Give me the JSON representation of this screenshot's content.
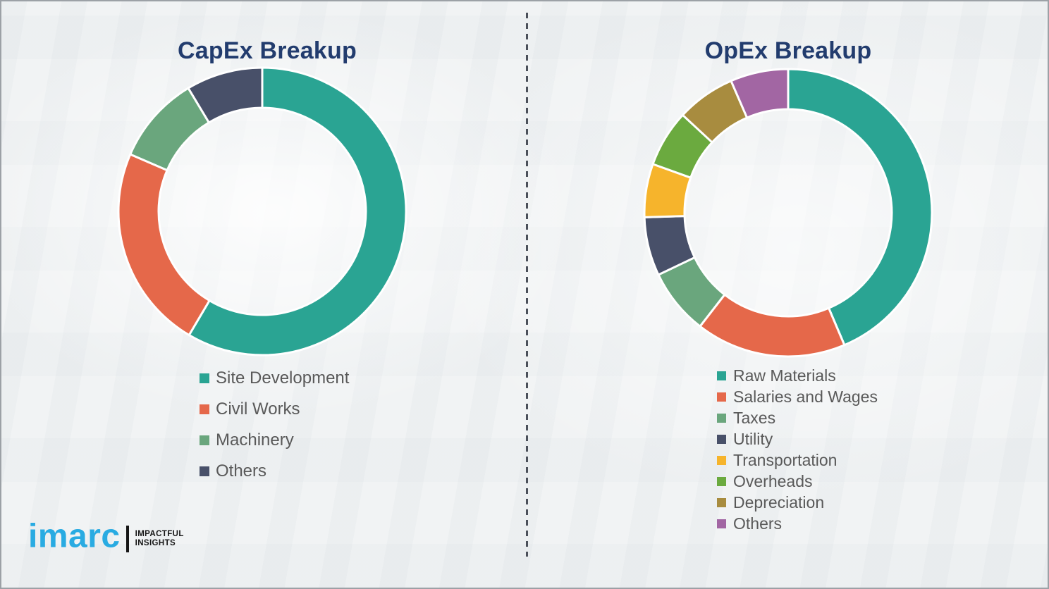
{
  "chart_data": [
    {
      "type": "pie",
      "subtype": "donut",
      "title": "CapEx Breakup",
      "categories": [
        "Site Development",
        "Civil Works",
        "Machinery",
        "Others"
      ],
      "values": [
        58.5,
        23.0,
        9.9,
        8.6
      ],
      "unit": "percent_estimated_from_arc_angles",
      "colors": [
        "#2AA493",
        "#E5684A",
        "#6AA67D",
        "#485069"
      ],
      "start_angle_deg": 0,
      "direction": "clockwise",
      "donut_hole_ratio": 0.72,
      "data_labels": "none",
      "legend_position": "below-chart-left"
    },
    {
      "type": "pie",
      "subtype": "donut",
      "title": "OpEx Breakup",
      "categories": [
        "Raw Materials",
        "Salaries and Wages",
        "Taxes",
        "Utility",
        "Transportation",
        "Overheads",
        "Depreciation",
        "Others"
      ],
      "values": [
        43.6,
        16.9,
        7.4,
        6.6,
        6.0,
        6.4,
        6.6,
        6.5
      ],
      "unit": "percent_estimated_from_arc_angles",
      "colors": [
        "#2AA493",
        "#E5684A",
        "#6AA67D",
        "#485069",
        "#F6B42C",
        "#6BAA3F",
        "#A88C3F",
        "#A266A3"
      ],
      "start_angle_deg": 0,
      "direction": "clockwise",
      "donut_hole_ratio": 0.72,
      "data_labels": "none",
      "legend_position": "below-chart-left"
    }
  ],
  "logo": {
    "brand": "imarc",
    "tagline_line1": "IMPACTFUL",
    "tagline_line2": "INSIGHTS",
    "brand_color": "#29ABE2"
  },
  "style": {
    "title_color": "#223C6E",
    "legend_text_color": "#595959",
    "divider_color": "#4B505A",
    "separator_color": "#FFFFFF",
    "background_color": "#F1F3F4"
  }
}
